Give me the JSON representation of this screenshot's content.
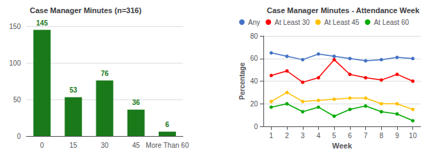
{
  "chart_data": [
    {
      "type": "bar",
      "title": "Case Manager Minutes (n=316)",
      "categories": [
        "0",
        "15",
        "30",
        "45",
        "More Than 60"
      ],
      "values": [
        145,
        53,
        76,
        36,
        6
      ],
      "color": "#1a7a1a",
      "ylim": [
        0,
        150
      ],
      "yticks": [
        0,
        50,
        100,
        150
      ],
      "grid": true,
      "data_labels": true
    },
    {
      "type": "line",
      "title": "Case Manager Minutes - Attendance Week",
      "xlabel": "Week",
      "ylabel": "Percentage",
      "x": [
        1,
        2,
        3,
        4,
        5,
        6,
        7,
        8,
        9,
        10
      ],
      "series": [
        {
          "name": "Any",
          "color": "#4472c4",
          "values": [
            65,
            62,
            59,
            64,
            62,
            60,
            58,
            59,
            61,
            60
          ]
        },
        {
          "name": "At Least 30",
          "color": "#ff0000",
          "values": [
            45,
            49,
            39,
            43,
            59,
            46,
            43,
            41,
            46,
            40
          ]
        },
        {
          "name": "At Least 45",
          "color": "#ffc000",
          "values": [
            22,
            30,
            22,
            23,
            24,
            25,
            25,
            20,
            20,
            15
          ]
        },
        {
          "name": "At Least 60",
          "color": "#00aa00",
          "values": [
            17,
            20,
            13,
            17,
            9,
            15,
            18,
            13,
            11,
            5
          ]
        }
      ],
      "xlim": [
        0.5,
        10.5
      ],
      "xticks": [
        1,
        2,
        3,
        4,
        5,
        6,
        7,
        8,
        9,
        10
      ],
      "ylim": [
        0,
        80
      ],
      "yticks": [
        0,
        20,
        40,
        60,
        80
      ],
      "grid": true,
      "legend": "top",
      "marker": "circle"
    }
  ]
}
